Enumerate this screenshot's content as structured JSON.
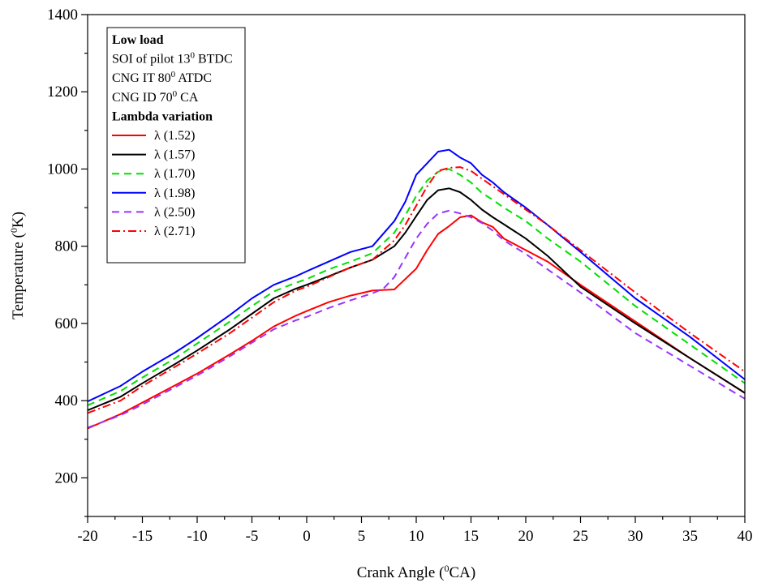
{
  "chart_data": {
    "type": "line",
    "xlabel": {
      "pre": "Crank Angle (",
      "sup": "0",
      "post": "CA)"
    },
    "ylabel": {
      "pre": "Temperature (",
      "sup": "0",
      "post": "K)"
    },
    "xlim": [
      -20,
      40
    ],
    "ylim": [
      100,
      1400
    ],
    "xticks": [
      -20,
      -15,
      -10,
      -5,
      0,
      5,
      10,
      15,
      20,
      25,
      30,
      35,
      40
    ],
    "yticks": [
      200,
      400,
      600,
      800,
      1000,
      1200,
      1400
    ],
    "grid": false,
    "legend": {
      "placement": "top-left",
      "info": [
        {
          "bold": true,
          "pre": "Low load",
          "sup": "",
          "post": ""
        },
        {
          "bold": false,
          "pre": "SOI of pilot 13",
          "sup": "0",
          "post": " BTDC"
        },
        {
          "bold": false,
          "pre": "CNG IT 80",
          "sup": "0",
          "post": " ATDC"
        },
        {
          "bold": false,
          "pre": "CNG ID 70",
          "sup": "0",
          "post": " CA"
        },
        {
          "bold": true,
          "pre": "Lambda variation",
          "sup": "",
          "post": ""
        }
      ]
    },
    "series": [
      {
        "name": "λ (1.52)",
        "color": "#ff0000",
        "dash": "solid",
        "x": [
          -20,
          -17,
          -15,
          -12,
          -10,
          -7,
          -5,
          -3,
          -1,
          0,
          2,
          4,
          6,
          8,
          9,
          10,
          11,
          12,
          13,
          14,
          15,
          16,
          17,
          18,
          20,
          22,
          25,
          30,
          35,
          40
        ],
        "y": [
          328,
          365,
          395,
          440,
          470,
          520,
          555,
          592,
          620,
          632,
          655,
          672,
          685,
          688,
          715,
          742,
          790,
          832,
          852,
          875,
          880,
          862,
          850,
          820,
          790,
          760,
          700,
          605,
          510,
          420
        ]
      },
      {
        "name": "λ (1.57)",
        "color": "#000000",
        "dash": "solid",
        "x": [
          -20,
          -17,
          -15,
          -12,
          -10,
          -7,
          -5,
          -3,
          -1,
          0,
          2,
          4,
          6,
          8,
          9,
          10,
          11,
          12,
          13,
          14,
          15,
          16,
          17,
          18,
          20,
          22,
          25,
          30,
          35,
          40
        ],
        "y": [
          375,
          410,
          445,
          495,
          530,
          585,
          625,
          665,
          690,
          700,
          722,
          745,
          765,
          800,
          835,
          878,
          920,
          945,
          950,
          940,
          920,
          895,
          875,
          857,
          820,
          775,
          695,
          600,
          510,
          420
        ]
      },
      {
        "name": "λ (1.70)",
        "color": "#00e000",
        "dash": "dash",
        "x": [
          -20,
          -17,
          -15,
          -12,
          -10,
          -7,
          -5,
          -3,
          -1,
          0,
          2,
          4,
          6,
          8,
          9,
          10,
          11,
          12,
          13,
          14,
          15,
          16,
          17,
          18,
          20,
          22,
          25,
          30,
          35,
          40
        ],
        "y": [
          388,
          425,
          460,
          510,
          548,
          605,
          645,
          683,
          705,
          715,
          740,
          760,
          782,
          835,
          880,
          930,
          970,
          993,
          1000,
          985,
          965,
          938,
          920,
          900,
          865,
          820,
          760,
          645,
          545,
          445
        ]
      },
      {
        "name": "λ (1.98)",
        "color": "#0000ff",
        "dash": "solid",
        "x": [
          -20,
          -17,
          -15,
          -12,
          -10,
          -7,
          -5,
          -3,
          -1,
          0,
          2,
          4,
          6,
          8,
          9,
          10,
          11,
          12,
          13,
          14,
          15,
          16,
          17,
          18,
          20,
          22,
          25,
          30,
          35,
          40
        ],
        "y": [
          398,
          438,
          475,
          525,
          562,
          622,
          665,
          700,
          722,
          735,
          760,
          785,
          800,
          865,
          915,
          985,
          1015,
          1045,
          1050,
          1030,
          1015,
          985,
          965,
          940,
          900,
          855,
          785,
          665,
          565,
          455
        ]
      },
      {
        "name": "λ (2.50)",
        "color": "#9933ff",
        "dash": "dash",
        "x": [
          -20,
          -17,
          -15,
          -12,
          -10,
          -7,
          -5,
          -3,
          -1,
          0,
          2,
          4,
          6,
          7,
          8,
          9,
          10,
          11,
          12,
          13,
          14,
          15,
          16,
          17,
          18,
          20,
          22,
          25,
          30,
          35,
          40
        ],
        "y": [
          330,
          362,
          390,
          435,
          465,
          515,
          550,
          585,
          608,
          617,
          640,
          660,
          678,
          690,
          720,
          770,
          820,
          858,
          885,
          892,
          885,
          875,
          860,
          840,
          815,
          780,
          740,
          680,
          575,
          490,
          405
        ]
      },
      {
        "name": "λ (2.71)",
        "color": "#ff0000",
        "dash": "dashdot",
        "x": [
          -20,
          -17,
          -15,
          -12,
          -10,
          -7,
          -5,
          -3,
          -1,
          0,
          2,
          4,
          6,
          8,
          9,
          10,
          11,
          12,
          13,
          14,
          15,
          16,
          17,
          18,
          20,
          22,
          25,
          30,
          35,
          40
        ],
        "y": [
          368,
          400,
          438,
          488,
          522,
          575,
          615,
          655,
          685,
          695,
          720,
          745,
          765,
          815,
          855,
          905,
          955,
          995,
          1003,
          1005,
          995,
          975,
          955,
          935,
          895,
          855,
          790,
          680,
          575,
          475
        ]
      }
    ]
  }
}
